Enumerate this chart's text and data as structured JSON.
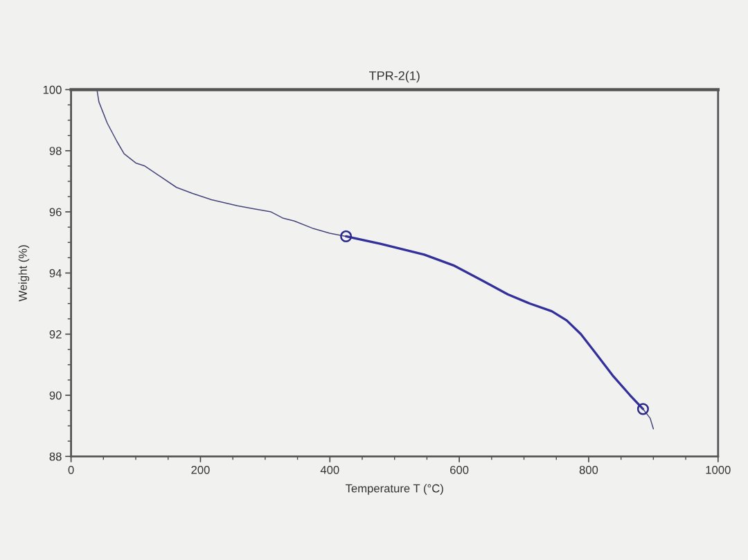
{
  "chart_data": {
    "type": "line",
    "title": "TPR-2(1)",
    "xlabel": "Temperature T (°C)",
    "ylabel": "Weight (%)",
    "xlim": [
      0,
      1000
    ],
    "ylim": [
      88,
      100
    ],
    "xticks": [
      0,
      {
        "value": 50,
        "label": null
      },
      {
        "value": 100,
        "label": null
      },
      {
        "value": 150,
        "label": null
      },
      200,
      {
        "value": 250,
        "label": null
      },
      {
        "value": 300,
        "label": null
      },
      {
        "value": 350,
        "label": null
      },
      400,
      {
        "value": 450,
        "label": null
      },
      {
        "value": 500,
        "label": null
      },
      {
        "value": 550,
        "label": null
      },
      600,
      {
        "value": 650,
        "label": null
      },
      {
        "value": 700,
        "label": null
      },
      {
        "value": 750,
        "label": null
      },
      800,
      {
        "value": 850,
        "label": null
      },
      {
        "value": 900,
        "label": null
      },
      {
        "value": 950,
        "label": null
      },
      1000
    ],
    "yticks": [
      88,
      {
        "value": 88.5,
        "label": null
      },
      {
        "value": 89,
        "label": null
      },
      {
        "value": 89.5,
        "label": null
      },
      90,
      {
        "value": 90.5,
        "label": null
      },
      {
        "value": 91,
        "label": null
      },
      {
        "value": 91.5,
        "label": null
      },
      92,
      {
        "value": 92.5,
        "label": null
      },
      {
        "value": 93,
        "label": null
      },
      {
        "value": 93.5,
        "label": null
      },
      94,
      {
        "value": 94.5,
        "label": null
      },
      {
        "value": 95,
        "label": null
      },
      {
        "value": 95.5,
        "label": null
      },
      96,
      {
        "value": 96.5,
        "label": null
      },
      {
        "value": 97,
        "label": null
      },
      {
        "value": 97.5,
        "label": null
      },
      98,
      {
        "value": 98.5,
        "label": null
      },
      {
        "value": 99,
        "label": null
      },
      {
        "value": 99.5,
        "label": null
      },
      100
    ],
    "series": [
      {
        "color": "#45457a",
        "x": [
          40,
          43,
          56,
          71,
          82,
          100,
          114,
          135,
          163,
          188,
          217,
          257,
          283,
          309,
          327,
          345,
          375,
          400,
          425
        ],
        "values": [
          100,
          99.6,
          98.9,
          98.3,
          97.9,
          97.6,
          97.5,
          97.2,
          96.8,
          96.6,
          96.4,
          96.2,
          96.1,
          96.0,
          95.8,
          95.7,
          95.45,
          95.3,
          95.2
        ]
      },
      {
        "color": "#33309a",
        "x": [
          425,
          479,
          546,
          591,
          636,
          675,
          709,
          743,
          766,
          788,
          810,
          837,
          864,
          884
        ],
        "values": [
          95.2,
          94.95,
          94.6,
          94.25,
          93.75,
          93.3,
          93.0,
          92.75,
          92.45,
          92.0,
          91.4,
          90.65,
          90.0,
          89.55
        ]
      },
      {
        "color": "#45457a",
        "x": [
          884,
          895,
          900
        ],
        "values": [
          89.55,
          89.25,
          88.9
        ]
      },
      {
        "type": "scatter",
        "color": "#2b2b8a",
        "marker": "circle",
        "x": [
          425,
          884
        ],
        "values": [
          95.2,
          89.55
        ]
      }
    ]
  }
}
